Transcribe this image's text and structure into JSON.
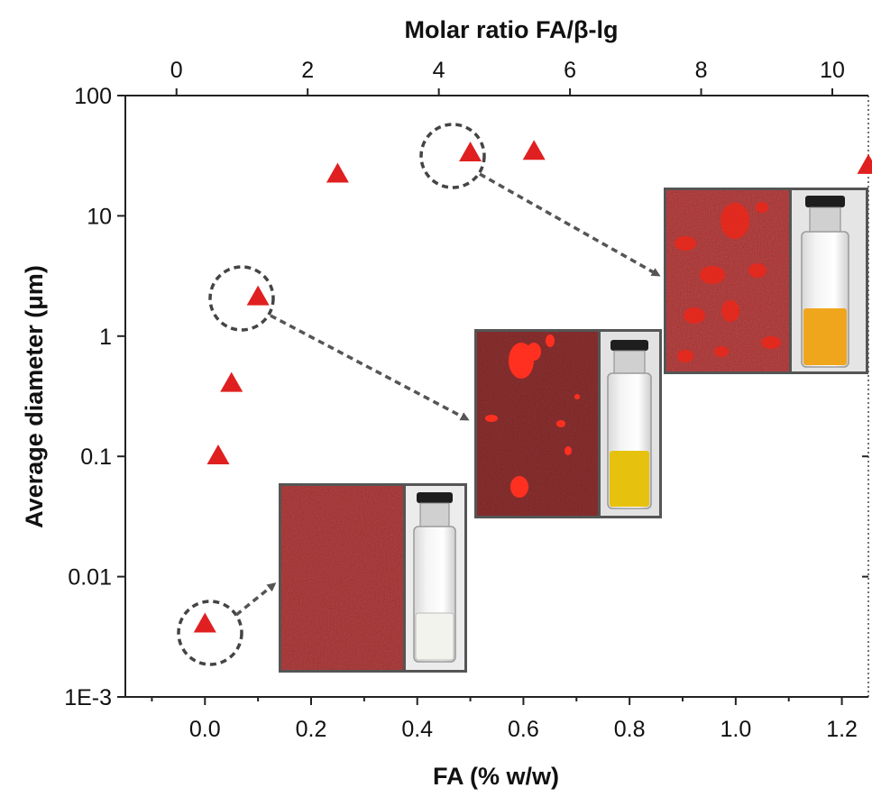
{
  "chart_data": {
    "type": "scatter",
    "title": "",
    "xlabel": "FA (% w/w)",
    "ylabel": "Average diameter (μm)",
    "top_xlabel": "Molar ratio FA/β-lg",
    "xlim": [
      -0.15,
      1.25
    ],
    "ylim": [
      0.001,
      100
    ],
    "y_scale": "log",
    "top_xlim": [
      -0.78,
      10.55
    ],
    "x_ticks": [
      "0.0",
      "0.2",
      "0.4",
      "0.6",
      "0.8",
      "1.0",
      "1.2"
    ],
    "x_tick_values": [
      0,
      0.2,
      0.4,
      0.6,
      0.8,
      1.0,
      1.2
    ],
    "y_ticks": [
      "1E-3",
      "0.01",
      "0.1",
      "1",
      "10",
      "100"
    ],
    "y_tick_values": [
      0.001,
      0.01,
      0.1,
      1,
      10,
      100
    ],
    "top_ticks": [
      "0",
      "2",
      "4",
      "6",
      "8",
      "10"
    ],
    "top_tick_values": [
      0,
      2,
      4,
      6,
      8,
      10
    ],
    "marker": "triangle",
    "marker_color": "#e02020",
    "series": [
      {
        "x": [
          0.0,
          0.025,
          0.05,
          0.1,
          0.25,
          0.5,
          0.62,
          1.25
        ],
        "y": [
          0.004,
          0.1,
          0.4,
          2.1,
          22,
          33,
          34,
          26
        ]
      }
    ],
    "highlighted_points": [
      0,
      3,
      5
    ],
    "grid": false,
    "legend": "none"
  },
  "insets": [
    {
      "name": "inset-low",
      "micrograph": "uniform-dark-red",
      "vial_liquid": "clear"
    },
    {
      "name": "inset-mid",
      "micrograph": "sparse-red-aggregates",
      "vial_liquid": "yellow"
    },
    {
      "name": "inset-high",
      "micrograph": "dense-red-aggregates",
      "vial_liquid": "orange"
    }
  ]
}
